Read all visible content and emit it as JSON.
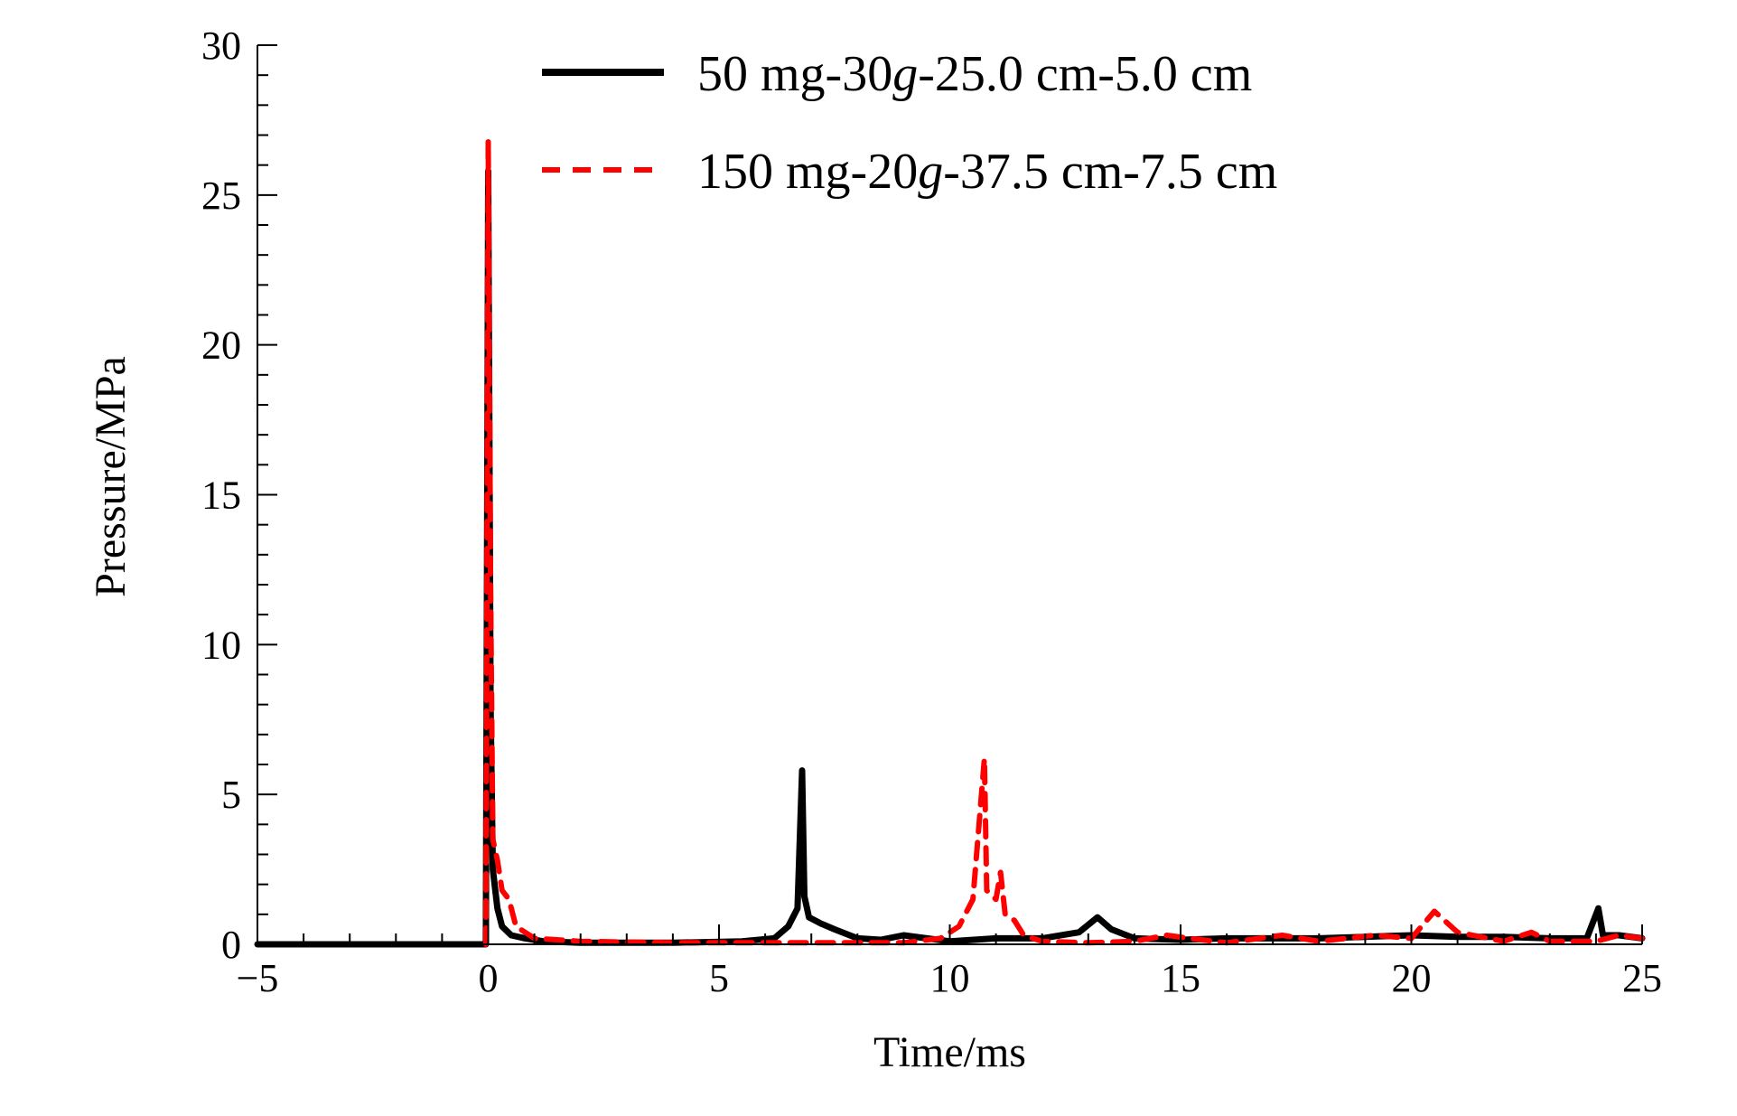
{
  "chart_data": {
    "type": "line",
    "xlabel": "Time/ms",
    "ylabel": "Pressure/MPa",
    "xlim": [
      -5,
      25
    ],
    "ylim": [
      0,
      30
    ],
    "x_ticks": [
      -5,
      0,
      5,
      10,
      15,
      20,
      25
    ],
    "x_tick_labels": [
      "−5",
      "0",
      "5",
      "10",
      "15",
      "20",
      "25"
    ],
    "y_ticks": [
      0,
      5,
      10,
      15,
      20,
      25,
      30
    ],
    "y_tick_labels": [
      "0",
      "5",
      "10",
      "15",
      "20",
      "25",
      "30"
    ],
    "grid": false,
    "legend_position": "top-center",
    "series": [
      {
        "name": "50 mg-30g-25.0 cm-5.0 cm",
        "name_parts": [
          "50 mg-30",
          "g",
          "-25.0 cm-5.0 cm"
        ],
        "color": "#000000",
        "style": "solid",
        "points": [
          [
            -5,
            0
          ],
          [
            -0.05,
            0
          ],
          [
            0,
            25.8
          ],
          [
            0.05,
            8.0
          ],
          [
            0.1,
            2.5
          ],
          [
            0.2,
            1.2
          ],
          [
            0.3,
            0.6
          ],
          [
            0.5,
            0.3
          ],
          [
            0.8,
            0.2
          ],
          [
            1.2,
            0.1
          ],
          [
            2,
            0.05
          ],
          [
            4,
            0.05
          ],
          [
            5.5,
            0.1
          ],
          [
            6.2,
            0.2
          ],
          [
            6.5,
            0.6
          ],
          [
            6.7,
            1.2
          ],
          [
            6.8,
            5.8
          ],
          [
            6.85,
            1.6
          ],
          [
            6.95,
            0.9
          ],
          [
            7.2,
            0.7
          ],
          [
            7.5,
            0.5
          ],
          [
            8,
            0.2
          ],
          [
            8.5,
            0.15
          ],
          [
            9,
            0.3
          ],
          [
            9.5,
            0.2
          ],
          [
            10,
            0.1
          ],
          [
            11,
            0.2
          ],
          [
            12,
            0.2
          ],
          [
            12.8,
            0.4
          ],
          [
            13.2,
            0.9
          ],
          [
            13.5,
            0.5
          ],
          [
            14,
            0.2
          ],
          [
            15,
            0.15
          ],
          [
            16,
            0.2
          ],
          [
            17,
            0.2
          ],
          [
            18,
            0.2
          ],
          [
            19,
            0.25
          ],
          [
            20,
            0.3
          ],
          [
            21,
            0.25
          ],
          [
            22,
            0.25
          ],
          [
            23,
            0.2
          ],
          [
            23.8,
            0.2
          ],
          [
            24.05,
            1.2
          ],
          [
            24.15,
            0.3
          ],
          [
            24.5,
            0.3
          ],
          [
            25,
            0.2
          ]
        ]
      },
      {
        "name": "150 mg-20g-37.5 cm-7.5 cm",
        "name_parts": [
          "150 mg-20",
          "g",
          "-37.5 cm-7.5 cm"
        ],
        "color": "#ff0000",
        "style": "dashed",
        "points": [
          [
            -0.05,
            0
          ],
          [
            0,
            26.8
          ],
          [
            0.05,
            12.0
          ],
          [
            0.1,
            3.5
          ],
          [
            0.2,
            2.8
          ],
          [
            0.3,
            1.8
          ],
          [
            0.45,
            1.5
          ],
          [
            0.6,
            0.6
          ],
          [
            1.0,
            0.2
          ],
          [
            2,
            0.1
          ],
          [
            4,
            0.05
          ],
          [
            6,
            0.05
          ],
          [
            8,
            0.05
          ],
          [
            9,
            0.05
          ],
          [
            9.8,
            0.2
          ],
          [
            10.2,
            0.6
          ],
          [
            10.5,
            1.5
          ],
          [
            10.75,
            6.2
          ],
          [
            10.8,
            1.8
          ],
          [
            11.0,
            1.5
          ],
          [
            11.1,
            2.4
          ],
          [
            11.2,
            1.0
          ],
          [
            11.4,
            0.8
          ],
          [
            11.6,
            0.3
          ],
          [
            12,
            0.1
          ],
          [
            13,
            0.05
          ],
          [
            14,
            0.1
          ],
          [
            14.7,
            0.3
          ],
          [
            15.2,
            0.2
          ],
          [
            16,
            0.05
          ],
          [
            17.2,
            0.3
          ],
          [
            18,
            0.1
          ],
          [
            19.2,
            0.3
          ],
          [
            20,
            0.2
          ],
          [
            20.5,
            1.1
          ],
          [
            21,
            0.4
          ],
          [
            22,
            0.1
          ],
          [
            22.6,
            0.4
          ],
          [
            23,
            0.1
          ],
          [
            24,
            0.1
          ],
          [
            24.5,
            0.3
          ],
          [
            25,
            0.2
          ]
        ]
      }
    ]
  }
}
